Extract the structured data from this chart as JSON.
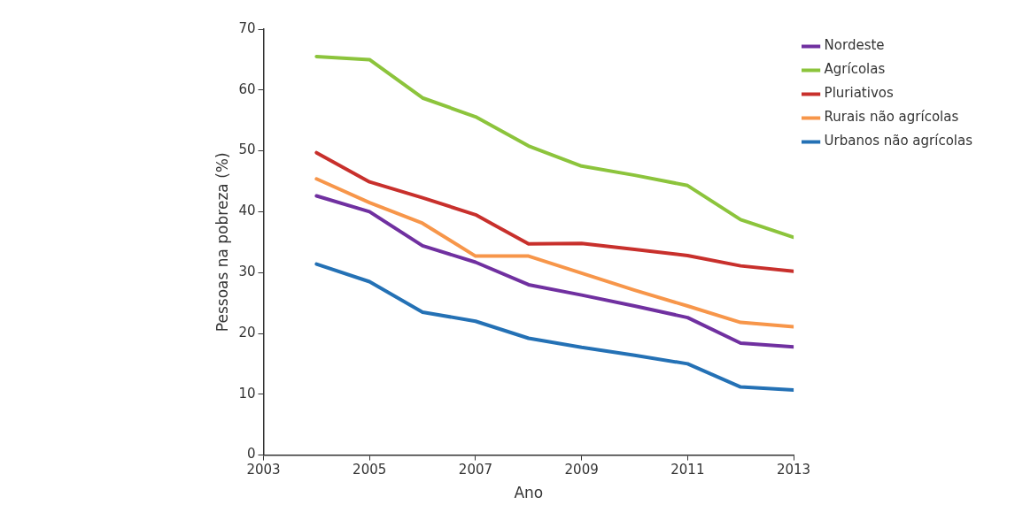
{
  "chart_data": {
    "type": "line",
    "xlabel": "Ano",
    "ylabel": "Pessoas na pobreza (%)",
    "x": [
      2004,
      2005,
      2006,
      2007,
      2008,
      2009,
      2010,
      2011,
      2012,
      2013
    ],
    "series": [
      {
        "name": "Nordeste",
        "color": "#7030a0",
        "values": [
          42.6,
          40.0,
          34.4,
          31.7,
          28.0,
          26.3,
          24.5,
          22.6,
          18.4,
          17.8
        ]
      },
      {
        "name": "Agrícolas",
        "color": "#8cc43c",
        "values": [
          65.5,
          65.0,
          58.7,
          55.6,
          50.8,
          47.5,
          46.0,
          44.3,
          38.7,
          35.8
        ]
      },
      {
        "name": "Pluriativos",
        "color": "#c8302c",
        "values": [
          49.7,
          44.9,
          42.3,
          39.5,
          34.7,
          34.8,
          33.8,
          32.8,
          31.1,
          30.2
        ]
      },
      {
        "name": "Rurais não agrícolas",
        "color": "#f7964a",
        "values": [
          45.4,
          41.5,
          38.1,
          32.7,
          32.7,
          29.9,
          27.1,
          24.5,
          21.8,
          21.1
        ]
      },
      {
        "name": "Urbanos não agrícolas",
        "color": "#2471b5",
        "values": [
          31.4,
          28.5,
          23.5,
          22.0,
          19.2,
          17.7,
          16.4,
          15.0,
          11.2,
          10.7
        ]
      }
    ],
    "xlim": [
      2003,
      2013
    ],
    "xticks": [
      2003,
      2005,
      2007,
      2009,
      2011,
      2013
    ],
    "ylim": [
      0,
      70
    ],
    "yticks": [
      0,
      10,
      20,
      30,
      40,
      50,
      60,
      70
    ],
    "grid": false,
    "legend": "top right",
    "marker": "none",
    "line_style": "solid"
  }
}
